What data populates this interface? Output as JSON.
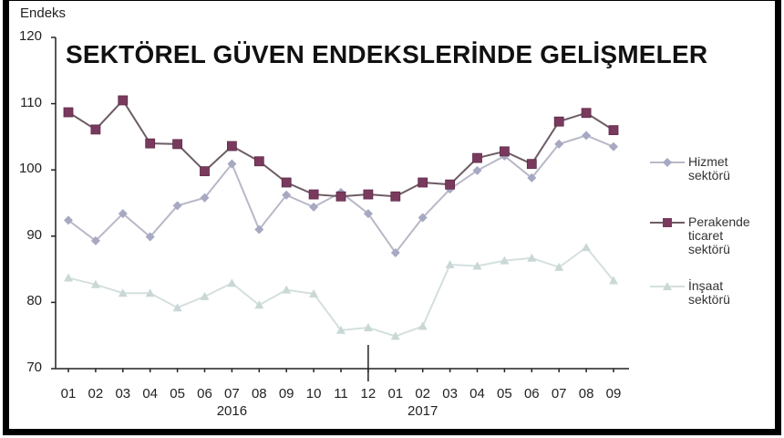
{
  "chart_data": {
    "type": "line",
    "title": "SEKTÖREL GÜVEN ENDEKSLERİNDE GELİŞMELER",
    "ylabel": "Endeks",
    "xlabel": "",
    "ylim": [
      70,
      120
    ],
    "yticks": [
      "120",
      "110",
      "100",
      "90",
      "80",
      "70"
    ],
    "x": [
      "01",
      "02",
      "03",
      "04",
      "05",
      "06",
      "07",
      "08",
      "09",
      "10",
      "11",
      "12",
      "01",
      "02",
      "03",
      "04",
      "05",
      "06",
      "07",
      "08",
      "09"
    ],
    "year_labels": [
      {
        "label": "2016",
        "under_index": 6
      },
      {
        "label": "2017",
        "under_index": 13
      }
    ],
    "grid": false,
    "legend_position": "right",
    "series": [
      {
        "name": "Hizmet sektörü",
        "legend_lines": [
          "Hizmet",
          "sektörü"
        ],
        "marker": "diamond",
        "color": "#a7a8c2",
        "values": [
          92.4,
          89.3,
          93.4,
          89.9,
          94.6,
          95.8,
          100.9,
          91.0,
          96.2,
          94.4,
          96.6,
          93.4,
          87.5,
          92.8,
          97.1,
          99.9,
          102.1,
          98.8,
          103.9,
          105.2,
          103.5
        ]
      },
      {
        "name": "Perakende ticaret sektörü",
        "legend_lines": [
          "Perakende",
          "ticaret",
          "sektörü"
        ],
        "marker": "square",
        "color": "#7a3a5e",
        "values": [
          108.7,
          106.1,
          110.5,
          104.0,
          103.9,
          99.8,
          103.6,
          101.3,
          98.1,
          96.3,
          96.0,
          96.3,
          96.0,
          98.1,
          97.8,
          101.8,
          102.8,
          100.9,
          107.3,
          108.6,
          106.0
        ]
      },
      {
        "name": "İnşaat sektörü",
        "legend_lines": [
          "İnşaat",
          "sektörü"
        ],
        "marker": "triangle",
        "color": "#c9d8d6",
        "values": [
          83.7,
          82.7,
          81.4,
          81.4,
          79.2,
          80.9,
          82.9,
          79.6,
          81.9,
          81.3,
          75.8,
          76.2,
          74.9,
          76.4,
          85.7,
          85.5,
          86.3,
          86.7,
          85.3,
          88.3,
          83.3
        ]
      }
    ]
  }
}
